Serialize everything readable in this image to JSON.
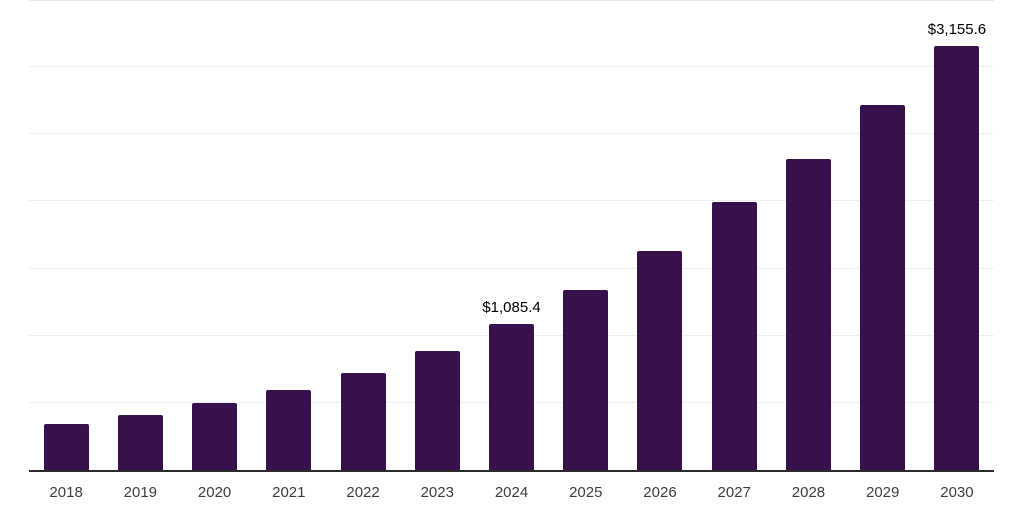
{
  "chart_data": {
    "type": "bar",
    "title": "",
    "xlabel": "",
    "ylabel": "",
    "categories": [
      "2018",
      "2019",
      "2020",
      "2021",
      "2022",
      "2023",
      "2024",
      "2025",
      "2026",
      "2027",
      "2028",
      "2029",
      "2030"
    ],
    "values": [
      339,
      408,
      497,
      595,
      722,
      889,
      1085.4,
      1337,
      1628,
      1995,
      2317,
      2718,
      3155.6
    ],
    "value_labels": [
      "",
      "",
      "",
      "",
      "",
      "",
      "$1,085.4",
      "",
      "",
      "",
      "",
      "",
      "$3,155.6"
    ],
    "ylim": [
      0,
      3500
    ],
    "gridline_step": 500,
    "grid": "horizontal",
    "legend": "none",
    "colors": {
      "bar": "#36114e",
      "axis_line": "#2b2b2b",
      "gridline": "#efefef",
      "top_gridline": "#e8e8e8",
      "data_label": "#000000",
      "tick_label": "#3d3d3d",
      "background": "#ffffff"
    }
  }
}
